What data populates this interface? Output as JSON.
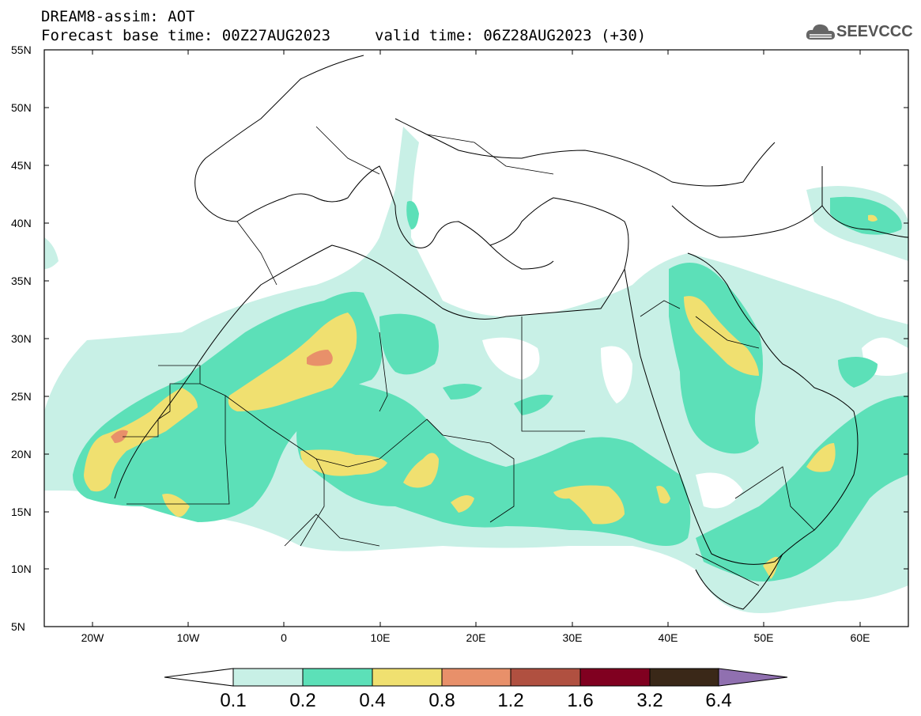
{
  "header": {
    "line1": "DREAM8-assim: AOT",
    "base_time": "Forecast base time: 00Z27AUG2023",
    "valid_time": "valid time: 06Z28AUG2023 (+30)"
  },
  "logo": {
    "text": "SEEVCCC",
    "icon": "cloud-icon"
  },
  "map": {
    "lon_range": [
      -25,
      65
    ],
    "lat_range": [
      5,
      55
    ],
    "lat_labels": [
      "55N",
      "50N",
      "45N",
      "40N",
      "35N",
      "30N",
      "25N",
      "20N",
      "15N",
      "10N",
      "5N"
    ],
    "lon_labels": [
      "20W",
      "10W",
      "0",
      "10E",
      "20E",
      "30E",
      "40E",
      "50E",
      "60E"
    ]
  },
  "colorbar": {
    "labels": [
      "0.1",
      "0.2",
      "0.4",
      "0.8",
      "1.2",
      "1.6",
      "3.2",
      "6.4"
    ],
    "colors": [
      "#c8f0e6",
      "#5ce0b8",
      "#f0e070",
      "#e8906a",
      "#b05040",
      "#800020",
      "#3a2818",
      "#9070b0"
    ]
  },
  "colors": {
    "level_0_1": "#c8f0e6",
    "level_0_2": "#5ce0b8",
    "level_0_4": "#f0e070",
    "level_0_8": "#e8906a"
  }
}
